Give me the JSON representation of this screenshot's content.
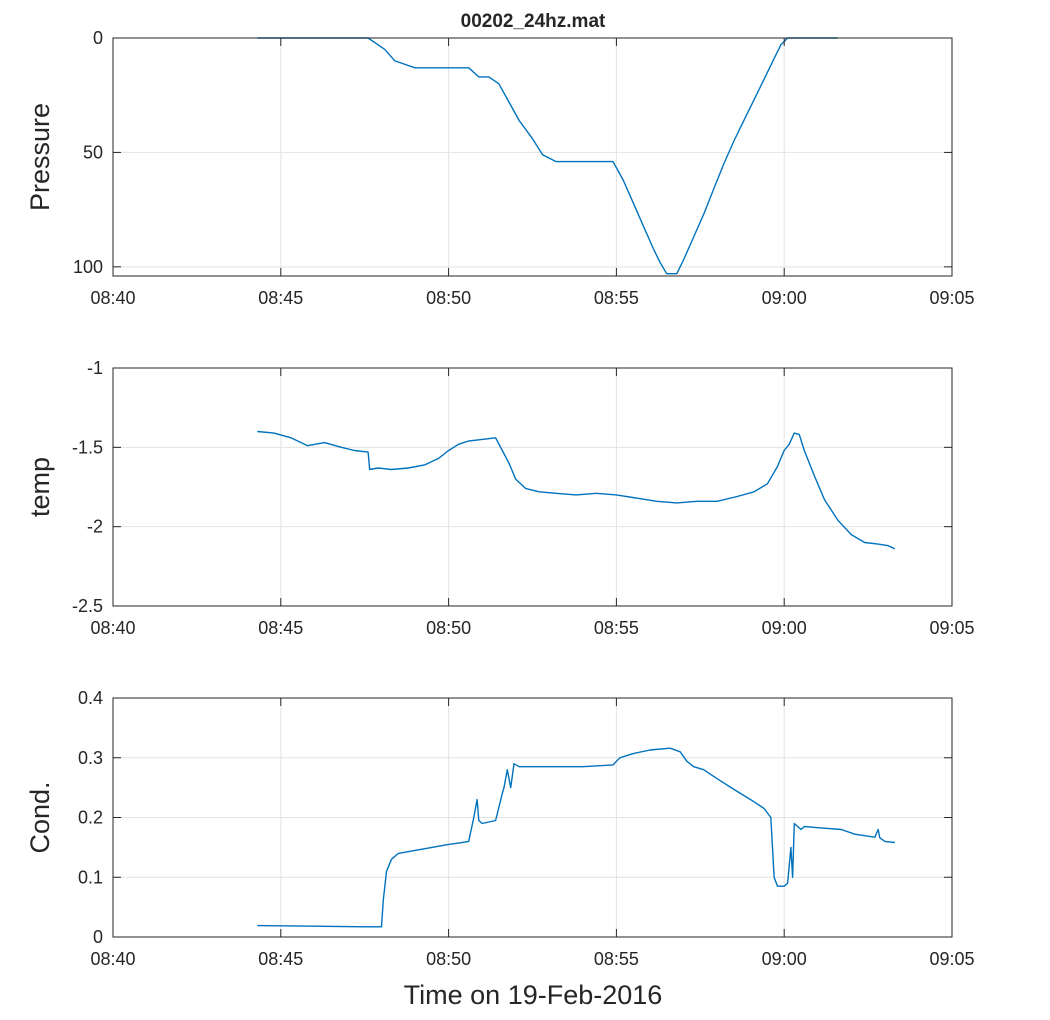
{
  "figure_title": "00202_24hz.mat",
  "xlabel": "Time on 19-Feb-2016",
  "colors": {
    "series": "#0072BD",
    "axes": "#262626",
    "grid": "#e3e3e3"
  },
  "chart_data": [
    {
      "type": "line",
      "title": "00202_24hz.mat",
      "ylabel": "Pressure",
      "xlabel": "",
      "y_reversed": true,
      "grid": true,
      "xlim": [
        0,
        25
      ],
      "ylim": [
        0,
        104
      ],
      "x_ticks": [
        0,
        5,
        10,
        15,
        20,
        25
      ],
      "x_tick_labels": [
        "08:40",
        "08:45",
        "08:50",
        "08:55",
        "09:00",
        "09:05"
      ],
      "y_ticks": [
        0,
        50,
        100
      ],
      "y_tick_labels": [
        "0",
        "50",
        "100"
      ],
      "x_unit": "minutes after 08:40",
      "series": [
        {
          "x": [
            4.3,
            7.6,
            7.8,
            8.1,
            8.4,
            9.0,
            9.5,
            10.0,
            10.6,
            10.9,
            11.2,
            11.5,
            11.8,
            12.1,
            12.5,
            12.8,
            13.2,
            13.6,
            14.0,
            14.5,
            14.9,
            15.2,
            15.5,
            15.8,
            16.1,
            16.3,
            16.5,
            16.8,
            17.0,
            17.3,
            17.6,
            17.9,
            18.2,
            18.5,
            18.8,
            19.1,
            19.4,
            19.7,
            19.9,
            20.1,
            20.3,
            21.0,
            21.6
          ],
          "y": [
            0,
            0,
            2,
            5,
            10,
            13,
            13,
            13,
            13,
            17,
            17,
            20,
            28,
            36,
            44,
            51,
            54,
            54,
            54,
            54,
            54,
            62,
            72,
            82,
            92,
            98,
            103,
            103,
            97,
            87,
            77,
            66,
            55,
            45,
            36,
            27,
            18,
            9,
            3,
            0,
            0,
            0,
            0
          ]
        }
      ]
    },
    {
      "type": "line",
      "title": "",
      "ylabel": "temp",
      "xlabel": "",
      "grid": true,
      "xlim": [
        0,
        25
      ],
      "ylim": [
        -2.5,
        -1
      ],
      "x_ticks": [
        0,
        5,
        10,
        15,
        20,
        25
      ],
      "x_tick_labels": [
        "08:40",
        "08:45",
        "08:50",
        "08:55",
        "09:00",
        "09:05"
      ],
      "y_ticks": [
        -2.5,
        -2,
        -1.5,
        -1
      ],
      "y_tick_labels": [
        "-2.5",
        "-2",
        "-1.5",
        "-1"
      ],
      "series": [
        {
          "x": [
            4.3,
            4.8,
            5.3,
            5.8,
            6.3,
            6.8,
            7.2,
            7.6,
            7.65,
            7.9,
            8.3,
            8.8,
            9.3,
            9.7,
            10.0,
            10.3,
            10.6,
            11.0,
            11.4,
            11.6,
            11.8,
            12.0,
            12.3,
            12.7,
            13.2,
            13.8,
            14.4,
            15.0,
            15.6,
            16.2,
            16.8,
            17.4,
            18.0,
            18.6,
            19.1,
            19.5,
            19.8,
            20.0,
            20.15,
            20.3,
            20.45,
            20.6,
            20.9,
            21.2,
            21.6,
            22.0,
            22.4,
            22.8,
            23.1,
            23.3
          ],
          "y": [
            -1.4,
            -1.41,
            -1.44,
            -1.49,
            -1.47,
            -1.5,
            -1.52,
            -1.53,
            -1.64,
            -1.63,
            -1.64,
            -1.63,
            -1.61,
            -1.57,
            -1.52,
            -1.48,
            -1.46,
            -1.45,
            -1.44,
            -1.52,
            -1.6,
            -1.7,
            -1.76,
            -1.78,
            -1.79,
            -1.8,
            -1.79,
            -1.8,
            -1.82,
            -1.84,
            -1.85,
            -1.84,
            -1.84,
            -1.81,
            -1.78,
            -1.73,
            -1.62,
            -1.52,
            -1.48,
            -1.41,
            -1.42,
            -1.52,
            -1.68,
            -1.83,
            -1.96,
            -2.05,
            -2.1,
            -2.11,
            -2.12,
            -2.14
          ]
        }
      ]
    },
    {
      "type": "line",
      "title": "",
      "ylabel": "Cond.",
      "xlabel": "Time on 19-Feb-2016",
      "grid": true,
      "xlim": [
        0,
        25
      ],
      "ylim": [
        0,
        0.4
      ],
      "x_ticks": [
        0,
        5,
        10,
        15,
        20,
        25
      ],
      "x_tick_labels": [
        "08:40",
        "08:45",
        "08:50",
        "08:55",
        "09:00",
        "09:05"
      ],
      "y_ticks": [
        0,
        0.1,
        0.2,
        0.3,
        0.4
      ],
      "y_tick_labels": [
        "0",
        "0.1",
        "0.2",
        "0.3",
        "0.4"
      ],
      "series": [
        {
          "x": [
            4.3,
            6.0,
            7.5,
            8.0,
            8.05,
            8.15,
            8.3,
            8.5,
            9.0,
            9.5,
            10.0,
            10.4,
            10.6,
            10.75,
            10.85,
            10.9,
            11.0,
            11.4,
            11.6,
            11.65,
            11.75,
            11.85,
            11.95,
            12.1,
            12.4,
            13.0,
            14.0,
            14.9,
            15.1,
            15.5,
            16.0,
            16.6,
            16.9,
            17.1,
            17.3,
            17.6,
            18.0,
            18.5,
            19.0,
            19.4,
            19.6,
            19.65,
            19.7,
            19.8,
            20.0,
            20.1,
            20.2,
            20.25,
            20.3,
            20.5,
            20.6,
            21.0,
            21.7,
            22.1,
            22.7,
            22.8,
            22.85,
            23.0,
            23.3
          ],
          "y": [
            0.019,
            0.018,
            0.017,
            0.017,
            0.06,
            0.11,
            0.13,
            0.14,
            0.145,
            0.15,
            0.155,
            0.158,
            0.16,
            0.2,
            0.23,
            0.195,
            0.19,
            0.195,
            0.24,
            0.25,
            0.28,
            0.25,
            0.29,
            0.285,
            0.285,
            0.285,
            0.285,
            0.288,
            0.3,
            0.307,
            0.313,
            0.316,
            0.31,
            0.294,
            0.285,
            0.28,
            0.265,
            0.247,
            0.23,
            0.215,
            0.2,
            0.15,
            0.1,
            0.085,
            0.085,
            0.09,
            0.15,
            0.1,
            0.19,
            0.18,
            0.185,
            0.183,
            0.18,
            0.172,
            0.167,
            0.18,
            0.166,
            0.16,
            0.158
          ]
        }
      ]
    }
  ]
}
